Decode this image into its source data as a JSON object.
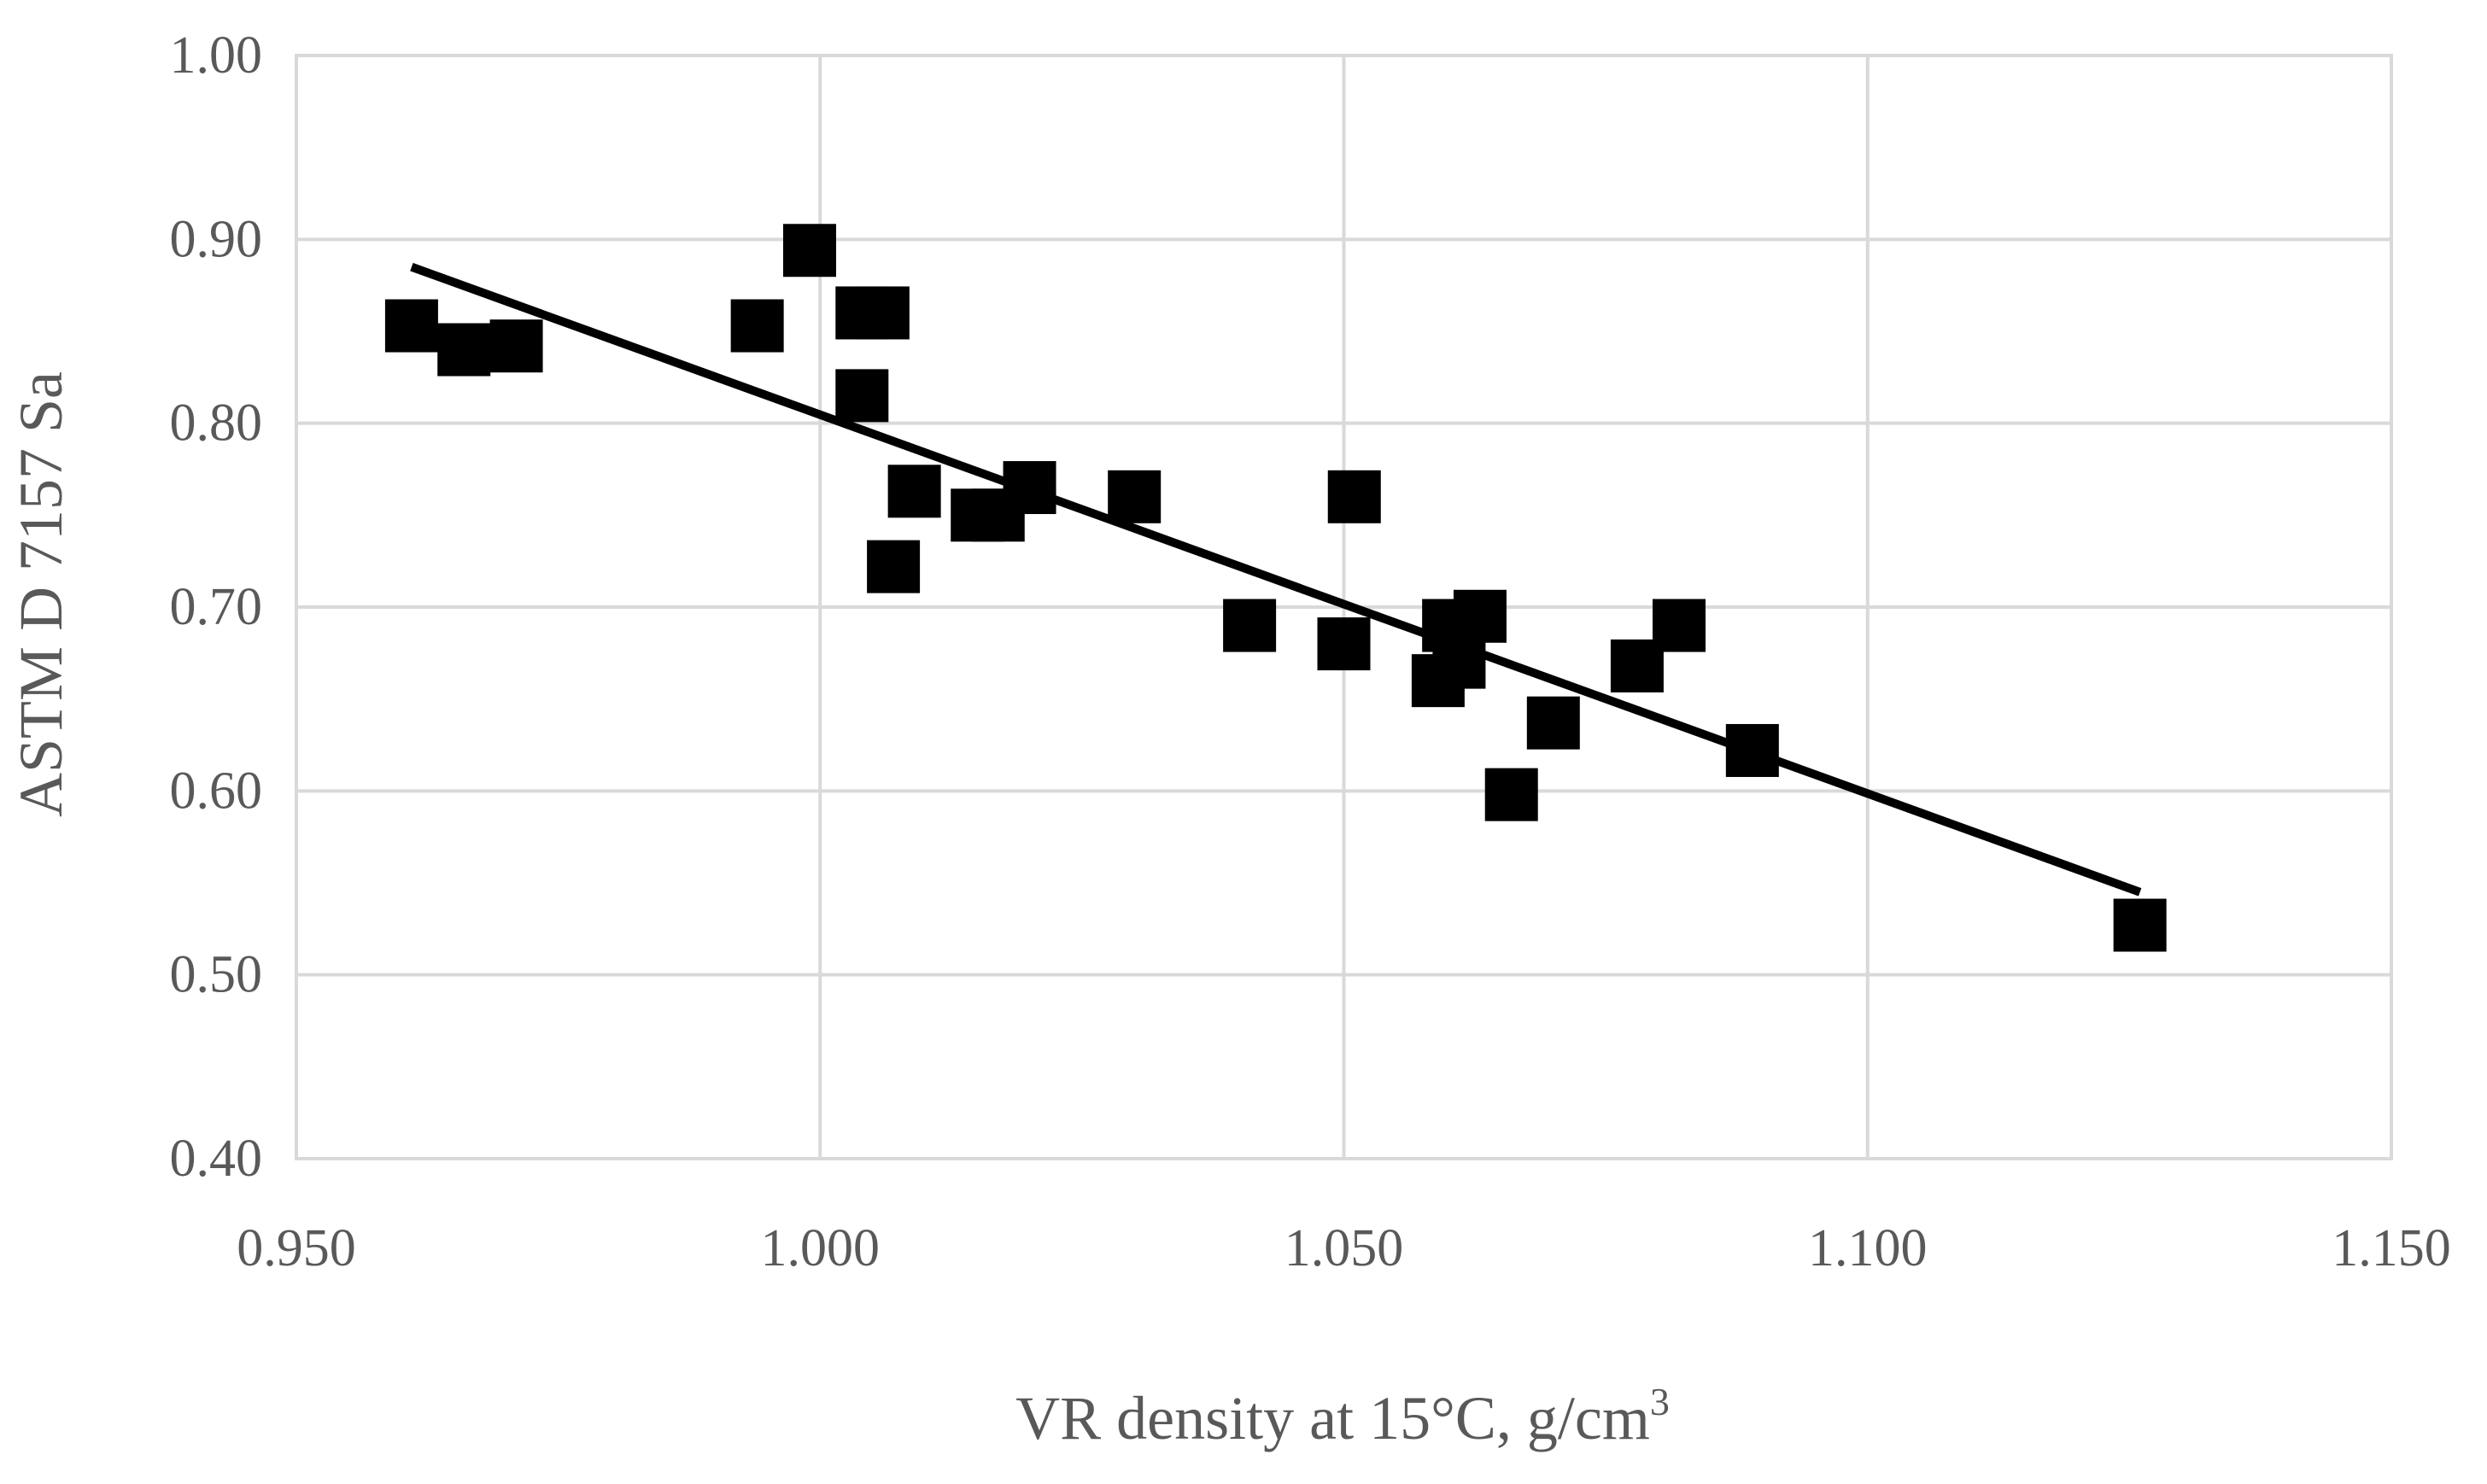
{
  "chart_data": {
    "type": "scatter",
    "title": "",
    "xlabel": "VR density at 15°C, g/cm",
    "xlabel_superscript": "3",
    "ylabel": "ASTM D 7157  Sa",
    "xlim": [
      0.95,
      1.15
    ],
    "ylim": [
      0.4,
      1.0
    ],
    "x_ticks": [
      "0.950",
      "1.000",
      "1.050",
      "1.100",
      "1.150"
    ],
    "y_ticks": [
      "0.40",
      "0.50",
      "0.60",
      "0.70",
      "0.80",
      "0.90",
      "1.00"
    ],
    "x_tick_values": [
      0.95,
      1.0,
      1.05,
      1.1,
      1.15
    ],
    "y_tick_values": [
      0.4,
      0.5,
      0.6,
      0.7,
      0.8,
      0.9,
      1.0
    ],
    "grid": true,
    "series": [
      {
        "name": "Sa",
        "marker": "square",
        "color": "#000000",
        "points": [
          [
            0.961,
            0.853
          ],
          [
            0.966,
            0.84
          ],
          [
            0.971,
            0.842
          ],
          [
            0.994,
            0.853
          ],
          [
            0.999,
            0.894
          ],
          [
            1.004,
            0.86
          ],
          [
            1.006,
            0.86
          ],
          [
            1.004,
            0.815
          ],
          [
            1.009,
            0.763
          ],
          [
            1.007,
            0.722
          ],
          [
            1.015,
            0.75
          ],
          [
            1.017,
            0.75
          ],
          [
            1.02,
            0.765
          ],
          [
            1.03,
            0.76
          ],
          [
            1.041,
            0.69
          ],
          [
            1.05,
            0.68
          ],
          [
            1.051,
            0.76
          ],
          [
            1.059,
            0.66
          ],
          [
            1.06,
            0.69
          ],
          [
            1.061,
            0.67
          ],
          [
            1.063,
            0.695
          ],
          [
            1.066,
            0.598
          ],
          [
            1.07,
            0.637
          ],
          [
            1.078,
            0.668
          ],
          [
            1.082,
            0.69
          ],
          [
            1.089,
            0.622
          ],
          [
            1.126,
            0.527
          ]
        ]
      }
    ],
    "trendline": {
      "type": "linear",
      "color": "#000000",
      "points": [
        [
          0.961,
          0.885
        ],
        [
          1.126,
          0.545
        ]
      ]
    }
  }
}
